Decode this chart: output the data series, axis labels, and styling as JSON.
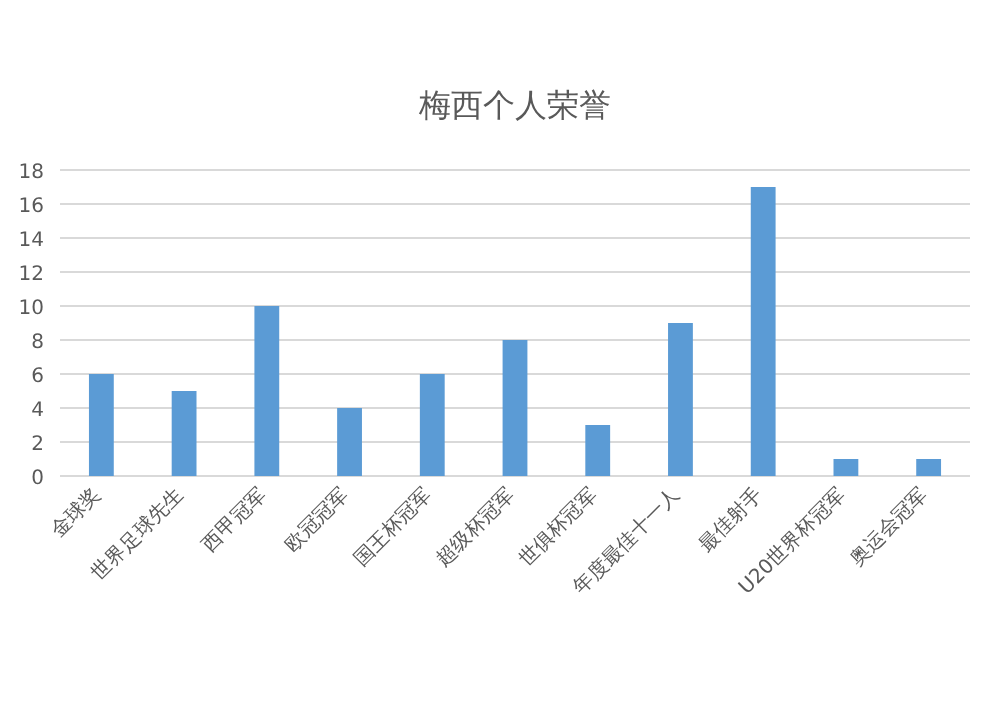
{
  "chart_data": {
    "type": "bar",
    "title": "梅西个人荣誉",
    "categories": [
      "金球奖",
      "世界足球先生",
      "西甲冠军",
      "欧冠冠军",
      "国王杯冠军",
      "超级杯冠军",
      "世俱杯冠军",
      "年度最佳十一人",
      "最佳射手",
      "U20世界杯冠军",
      "奥运会冠军"
    ],
    "values": [
      6,
      5,
      10,
      4,
      6,
      8,
      3,
      9,
      17,
      1,
      1
    ],
    "color": "#5b9bd5",
    "ylim": [
      0,
      18
    ],
    "yticks": [
      0,
      2,
      4,
      6,
      8,
      10,
      12,
      14,
      16,
      18
    ],
    "grid": "y"
  }
}
